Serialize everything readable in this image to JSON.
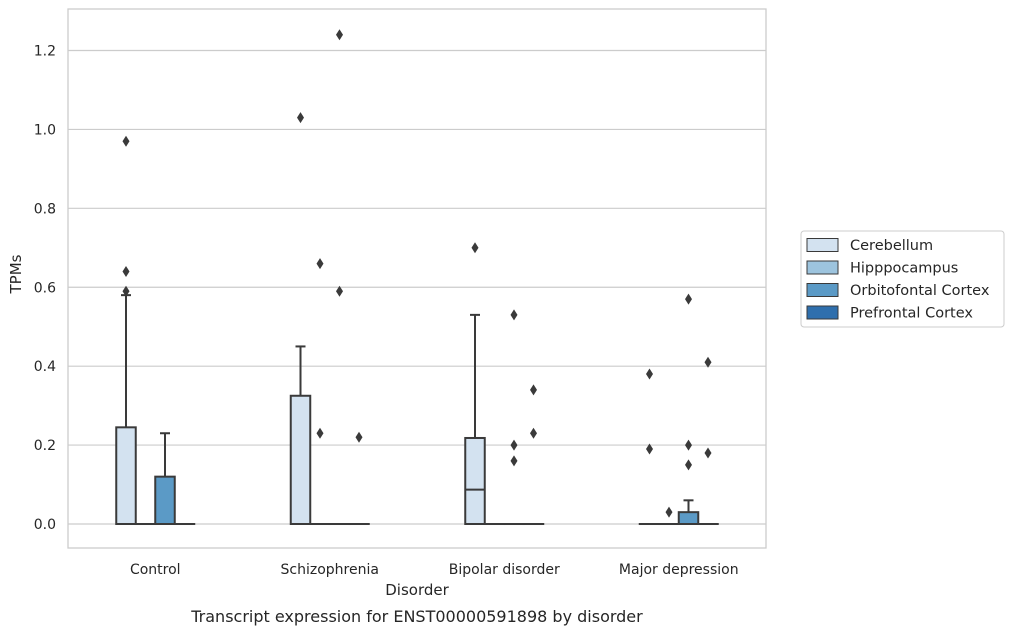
{
  "chart_data": {
    "type": "box",
    "caption": "Transcript expression for ENST00000591898 by disorder",
    "xlabel": "Disorder",
    "ylabel": "TPMs",
    "ylim": [
      -0.06,
      1.3
    ],
    "yticks": [
      0.0,
      0.2,
      0.4,
      0.6,
      0.8,
      1.0,
      1.2
    ],
    "ytick_labels": [
      "0.0",
      "0.2",
      "0.4",
      "0.6",
      "0.8",
      "1.0",
      "1.2"
    ],
    "grid": "horizontal",
    "legend_position": "right",
    "categories": [
      "Control",
      "Schizophrenia",
      "Bipolar disorder",
      "Major depression"
    ],
    "series": [
      {
        "name": "Cerebellum",
        "color": "#d3e2f0",
        "boxes": [
          {
            "q1": 0,
            "median": 0,
            "q3": 0.245,
            "whisker_low": 0,
            "whisker_high": 0.58,
            "outliers": [
              0.64,
              0.59,
              0.97
            ]
          },
          {
            "q1": 0,
            "median": 0,
            "q3": 0.325,
            "whisker_low": 0,
            "whisker_high": 0.45,
            "outliers": [
              1.03
            ]
          },
          {
            "q1": 0,
            "median": 0.087,
            "q3": 0.218,
            "whisker_low": 0,
            "whisker_high": 0.53,
            "outliers": [
              0.7
            ]
          },
          {
            "q1": 0,
            "median": 0,
            "q3": 0,
            "whisker_low": 0,
            "whisker_high": 0,
            "outliers": [
              0.38,
              0.19
            ]
          }
        ]
      },
      {
        "name": "Hipppocampus",
        "color": "#9dc4de",
        "boxes": [
          {
            "q1": 0,
            "median": 0,
            "q3": 0,
            "whisker_low": 0,
            "whisker_high": 0,
            "outliers": []
          },
          {
            "q1": 0,
            "median": 0,
            "q3": 0,
            "whisker_low": 0,
            "whisker_high": 0,
            "outliers": [
              0.66,
              0.23
            ]
          },
          {
            "q1": 0,
            "median": 0,
            "q3": 0,
            "whisker_low": 0,
            "whisker_high": 0,
            "outliers": []
          },
          {
            "q1": 0,
            "median": 0,
            "q3": 0,
            "whisker_low": 0,
            "whisker_high": 0,
            "outliers": [
              0.03
            ]
          }
        ]
      },
      {
        "name": "Orbitofontal Cortex",
        "color": "#5b9ac6",
        "boxes": [
          {
            "q1": 0,
            "median": 0,
            "q3": 0.12,
            "whisker_low": 0,
            "whisker_high": 0.23,
            "outliers": []
          },
          {
            "q1": 0,
            "median": 0,
            "q3": 0,
            "whisker_low": 0,
            "whisker_high": 0,
            "outliers": [
              1.24,
              0.59
            ]
          },
          {
            "q1": 0,
            "median": 0,
            "q3": 0,
            "whisker_low": 0,
            "whisker_high": 0,
            "outliers": [
              0.53,
              0.2,
              0.16
            ]
          },
          {
            "q1": 0,
            "median": 0,
            "q3": 0.03,
            "whisker_low": 0,
            "whisker_high": 0.06,
            "outliers": [
              0.57,
              0.2,
              0.15
            ]
          }
        ]
      },
      {
        "name": "Prefrontal Cortex",
        "color": "#2f6fad",
        "boxes": [
          {
            "q1": 0,
            "median": 0,
            "q3": 0,
            "whisker_low": 0,
            "whisker_high": 0,
            "outliers": []
          },
          {
            "q1": 0,
            "median": 0,
            "q3": 0,
            "whisker_low": 0,
            "whisker_high": 0,
            "outliers": [
              0.22
            ]
          },
          {
            "q1": 0,
            "median": 0,
            "q3": 0,
            "whisker_low": 0,
            "whisker_high": 0,
            "outliers": [
              0.34,
              0.23
            ]
          },
          {
            "q1": 0,
            "median": 0,
            "q3": 0,
            "whisker_low": 0,
            "whisker_high": 0,
            "outliers": [
              0.41,
              0.18
            ]
          }
        ]
      }
    ]
  }
}
